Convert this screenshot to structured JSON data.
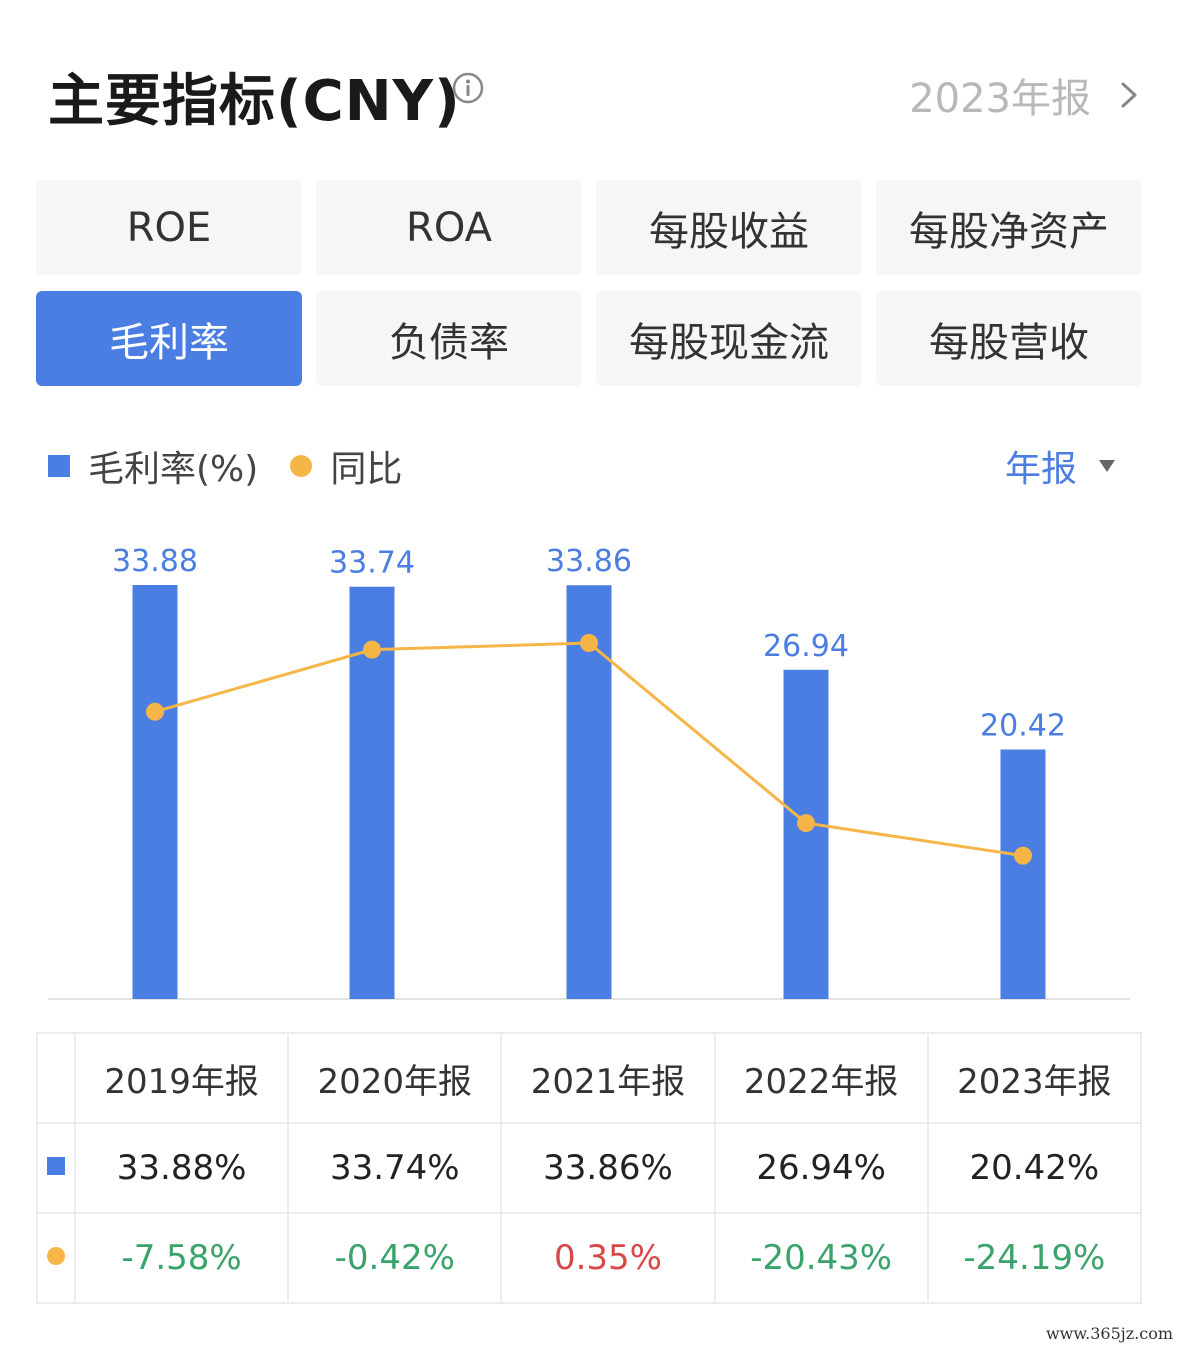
{
  "header": {
    "title": "主要指标(CNY)",
    "report_label": "2023年报"
  },
  "tabs": [
    {
      "label": "ROE",
      "active": false
    },
    {
      "label": "ROA",
      "active": false
    },
    {
      "label": "每股收益",
      "active": false
    },
    {
      "label": "每股净资产",
      "active": false
    },
    {
      "label": "毛利率",
      "active": true
    },
    {
      "label": "负债率",
      "active": false
    },
    {
      "label": "每股现金流",
      "active": false
    },
    {
      "label": "每股营收",
      "active": false
    }
  ],
  "legend": {
    "bar_label": "毛利率(%)",
    "line_label": "同比",
    "period_label": "年报"
  },
  "colors": {
    "bar": "#4b7ee3",
    "line": "#f5b547",
    "positive": "#d94848",
    "negative": "#3aa36b"
  },
  "chart_data": {
    "type": "bar",
    "categories": [
      "2019年报",
      "2020年报",
      "2021年报",
      "2022年报",
      "2023年报"
    ],
    "series": [
      {
        "name": "毛利率(%)",
        "type": "bar",
        "values": [
          33.88,
          33.74,
          33.86,
          26.94,
          20.42
        ],
        "labels": [
          "33.88",
          "33.74",
          "33.86",
          "26.94",
          "20.42"
        ]
      },
      {
        "name": "同比",
        "type": "line",
        "values": [
          -7.58,
          -0.42,
          0.35,
          -20.43,
          -24.19
        ]
      }
    ],
    "bar_ylim": [
      0,
      33.88
    ],
    "line_ylim": [
      -27,
      0.35
    ],
    "grid": false
  },
  "table": {
    "headers": [
      "2019年报",
      "2020年报",
      "2021年报",
      "2022年报",
      "2023年报"
    ],
    "bar_row": [
      "33.88%",
      "33.74%",
      "33.86%",
      "26.94%",
      "20.42%"
    ],
    "line_row": [
      "-7.58%",
      "-0.42%",
      "0.35%",
      "-20.43%",
      "-24.19%"
    ]
  },
  "watermark": "www.365jz.com"
}
